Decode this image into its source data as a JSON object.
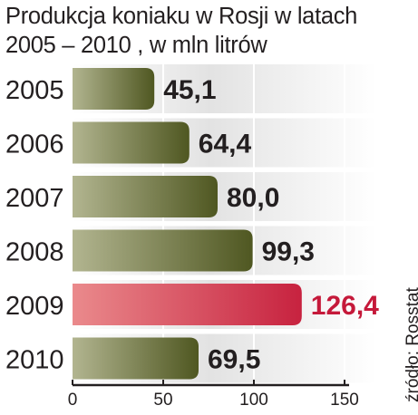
{
  "title_line1": "Produkcja koniaku w Rosji w latach",
  "title_line2": "2005 – 2010 , w mln litrów",
  "source": "źródło: Rosstat",
  "colors": {
    "bar_default_dark": "#4f5721",
    "bar_default_light": "#b2b590",
    "bar_highlight_dark": "#c7223f",
    "bar_highlight_light": "#ea8a8c",
    "value_default": "#231f20",
    "value_highlight": "#c5193a",
    "band": "#d9d9d9"
  },
  "chart_data": {
    "type": "bar",
    "orientation": "horizontal",
    "categories": [
      "2005",
      "2006",
      "2007",
      "2008",
      "2009",
      "2010"
    ],
    "values": [
      45.1,
      64.4,
      80.0,
      99.3,
      126.4,
      69.5
    ],
    "value_labels": [
      "45,1",
      "64,4",
      "80,0",
      "99,3",
      "126,4",
      "69,5"
    ],
    "highlight_index": 4,
    "xlim": [
      0,
      150
    ],
    "xticks": [
      "0",
      "50",
      "100",
      "150"
    ],
    "xtick_values": [
      0,
      50,
      100,
      150
    ],
    "title": "Produkcja koniaku w Rosji w latach 2005 – 2010 , w mln litrów",
    "xlabel": "",
    "ylabel": "",
    "grid": true,
    "legend": "none"
  }
}
